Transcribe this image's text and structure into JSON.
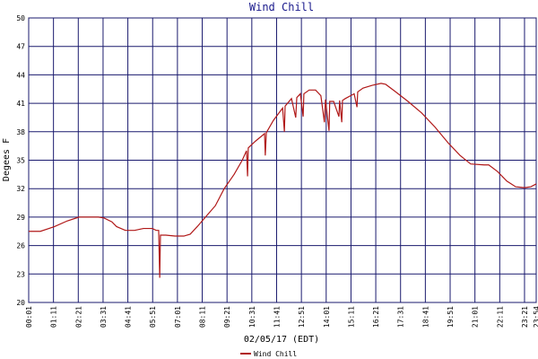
{
  "chart_data": {
    "type": "line",
    "title": "Wind Chill",
    "x_label": "02/05/17 (EDT)",
    "y_label": "Degees F",
    "xlim": [
      1,
      1434
    ],
    "ylim": [
      20,
      50
    ],
    "yticks": [
      20,
      23,
      26,
      29,
      32,
      35,
      38,
      41,
      44,
      47,
      50
    ],
    "xticks": [
      {
        "value": 1,
        "label": "00:01"
      },
      {
        "value": 71,
        "label": "01:11"
      },
      {
        "value": 141,
        "label": "02:21"
      },
      {
        "value": 211,
        "label": "03:31"
      },
      {
        "value": 281,
        "label": "04:41"
      },
      {
        "value": 351,
        "label": "05:51"
      },
      {
        "value": 421,
        "label": "07:01"
      },
      {
        "value": 491,
        "label": "08:11"
      },
      {
        "value": 561,
        "label": "09:21"
      },
      {
        "value": 631,
        "label": "10:31"
      },
      {
        "value": 701,
        "label": "11:41"
      },
      {
        "value": 771,
        "label": "12:51"
      },
      {
        "value": 841,
        "label": "14:01"
      },
      {
        "value": 911,
        "label": "15:11"
      },
      {
        "value": 981,
        "label": "16:21"
      },
      {
        "value": 1051,
        "label": "17:31"
      },
      {
        "value": 1121,
        "label": "18:41"
      },
      {
        "value": 1191,
        "label": "19:51"
      },
      {
        "value": 1261,
        "label": "21:01"
      },
      {
        "value": 1331,
        "label": "22:11"
      },
      {
        "value": 1401,
        "label": "23:21"
      },
      {
        "value": 1434,
        "label": "23:54"
      }
    ],
    "grid": true,
    "grid_color": "#1a1a6e",
    "series": [
      {
        "name": "Wind Chill",
        "color": "#b01818",
        "x": [
          1,
          34,
          74,
          110,
          143,
          173,
          198,
          214,
          236,
          249,
          274,
          300,
          325,
          350,
          361,
          368,
          371,
          373,
          388,
          414,
          439,
          457,
          477,
          507,
          528,
          553,
          581,
          604,
          616,
          619,
          621,
          641,
          667,
          669,
          672,
          692,
          718,
          723,
          725,
          743,
          755,
          758,
          768,
          776,
          778,
          793,
          811,
          826,
          836,
          839,
          849,
          851,
          862,
          877,
          879,
          885,
          887,
          895,
          920,
          928,
          930,
          945,
          971,
          996,
          1009,
          1034,
          1072,
          1110,
          1148,
          1186,
          1219,
          1249,
          1287,
          1300,
          1325,
          1351,
          1376,
          1401,
          1419,
          1434
        ],
        "values": [
          27.5,
          27.5,
          28.0,
          28.6,
          29.0,
          29.0,
          29.0,
          28.9,
          28.5,
          28.0,
          27.6,
          27.6,
          27.8,
          27.8,
          27.6,
          27.6,
          22.6,
          27.1,
          27.1,
          27.0,
          27.0,
          27.2,
          28.0,
          29.3,
          30.2,
          32.0,
          33.5,
          35.0,
          36.0,
          33.3,
          36.3,
          37.0,
          37.8,
          35.5,
          37.9,
          39.2,
          40.5,
          38.0,
          40.7,
          41.5,
          39.5,
          41.6,
          42.0,
          39.6,
          42.0,
          42.4,
          42.4,
          41.8,
          39.0,
          41.4,
          38.1,
          41.2,
          41.2,
          39.6,
          41.3,
          39.0,
          41.3,
          41.5,
          42.0,
          40.6,
          42.2,
          42.6,
          42.9,
          43.1,
          43.0,
          42.3,
          41.2,
          40.0,
          38.5,
          36.8,
          35.5,
          34.6,
          34.5,
          34.5,
          33.8,
          32.8,
          32.2,
          32.1,
          32.2,
          32.5
        ]
      }
    ]
  }
}
